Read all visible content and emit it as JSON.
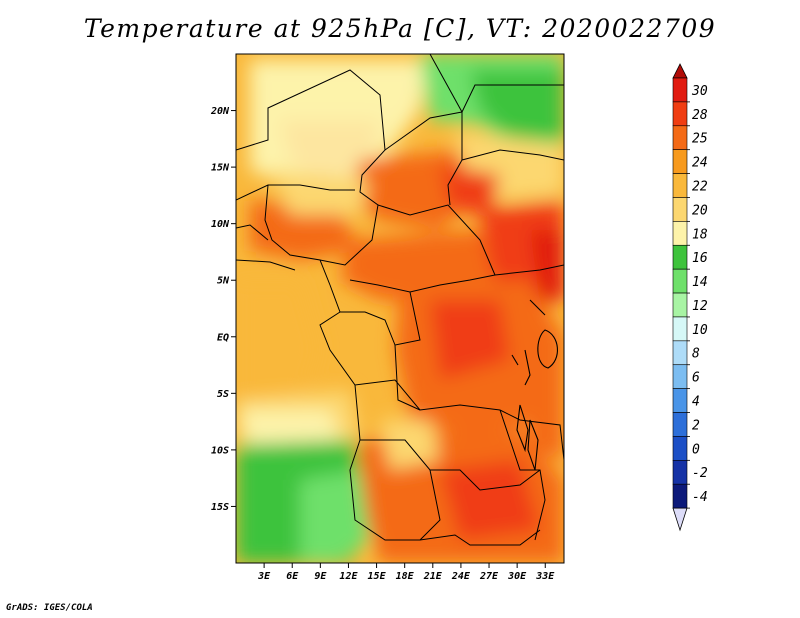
{
  "title": "Temperature at 925hPa [C], VT: 2020022709",
  "credit": "GrADS: IGES/COLA",
  "map": {
    "lon_range": [
      0,
      35
    ],
    "lat_range": [
      -20,
      25
    ],
    "lat_ticks": [
      {
        "value": 20,
        "label": "20N"
      },
      {
        "value": 15,
        "label": "15N"
      },
      {
        "value": 10,
        "label": "10N"
      },
      {
        "value": 5,
        "label": "5N"
      },
      {
        "value": 0,
        "label": "EQ"
      },
      {
        "value": -5,
        "label": "5S"
      },
      {
        "value": -10,
        "label": "10S"
      },
      {
        "value": -15,
        "label": "15S"
      }
    ],
    "lon_ticks": [
      {
        "value": 3,
        "label": "3E"
      },
      {
        "value": 6,
        "label": "6E"
      },
      {
        "value": 9,
        "label": "9E"
      },
      {
        "value": 12,
        "label": "12E"
      },
      {
        "value": 15,
        "label": "15E"
      },
      {
        "value": 18,
        "label": "18E"
      },
      {
        "value": 21,
        "label": "21E"
      },
      {
        "value": 24,
        "label": "24E"
      },
      {
        "value": 27,
        "label": "27E"
      },
      {
        "value": 30,
        "label": "30E"
      },
      {
        "value": 33,
        "label": "33E"
      }
    ]
  },
  "colorbar": {
    "levels": [
      {
        "label": "30",
        "color": "#e11b10"
      },
      {
        "label": "28",
        "color": "#f03d12"
      },
      {
        "label": "25",
        "color": "#f46a16"
      },
      {
        "label": "24",
        "color": "#f79a1e"
      },
      {
        "label": "22",
        "color": "#f9b83b"
      },
      {
        "label": "20",
        "color": "#fcd770"
      },
      {
        "label": "18",
        "color": "#fdf3aa"
      },
      {
        "label": "16",
        "color": "#3ec33c"
      },
      {
        "label": "14",
        "color": "#6ee06a"
      },
      {
        "label": "12",
        "color": "#a8f4a4"
      },
      {
        "label": "10",
        "color": "#d6f8f7"
      },
      {
        "label": "8",
        "color": "#aedcf8"
      },
      {
        "label": "6",
        "color": "#7cbdf1"
      },
      {
        "label": "4",
        "color": "#4a95e8"
      },
      {
        "label": "2",
        "color": "#2d6fd9"
      },
      {
        "label": "0",
        "color": "#1c4fc6"
      },
      {
        "label": "-2",
        "color": "#1532a6"
      },
      {
        "label": "-4",
        "color": "#0c1a7a"
      }
    ],
    "top_color": "#b00c08",
    "bottom_color": "#dcdcf8"
  }
}
